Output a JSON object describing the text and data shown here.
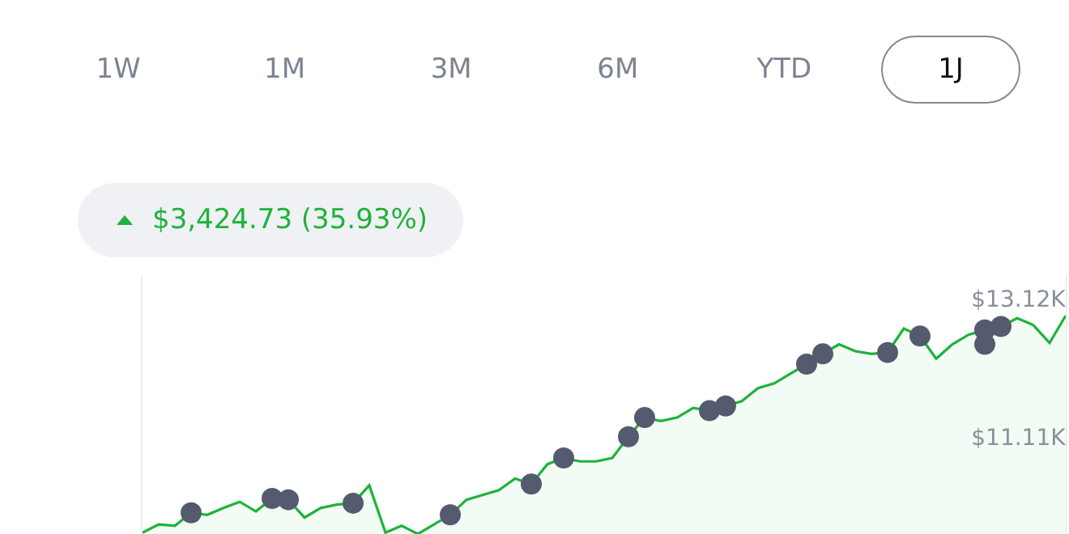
{
  "chart_data": {
    "type": "area",
    "subtitle": "$3,424.73 (35.93%)",
    "annotations": [
      "1W",
      "1M",
      "3M",
      "6M",
      "YTD",
      "1J"
    ],
    "categories": [
      null,
      null,
      null,
      null,
      null,
      null,
      null,
      null,
      null,
      null,
      null,
      null,
      null,
      null,
      null,
      null,
      null,
      null,
      null,
      null,
      null,
      null,
      null,
      null,
      null,
      null,
      null,
      null,
      null,
      null,
      null,
      null,
      null,
      null,
      null,
      null,
      null,
      null,
      null,
      null,
      null,
      null,
      null,
      null,
      null,
      null,
      null,
      null,
      null,
      null,
      null,
      null,
      null,
      null,
      null,
      null,
      null,
      null
    ],
    "series": [
      {
        "type": "area",
        "color": "#1db33a",
        "values": [
          9.71,
          9.83,
          9.81,
          10.0,
          9.97,
          10.07,
          10.16,
          10.02,
          10.21,
          10.19,
          9.93,
          10.07,
          10.12,
          10.14,
          10.4,
          9.71,
          9.81,
          9.69,
          9.83,
          9.97,
          10.19,
          10.26,
          10.33,
          10.5,
          10.42,
          10.71,
          10.8,
          10.75,
          10.75,
          10.8,
          11.11,
          11.39,
          11.34,
          11.39,
          11.53,
          11.49,
          11.56,
          11.63,
          11.82,
          11.89,
          12.03,
          12.17,
          12.32,
          12.46,
          12.36,
          12.32,
          12.34,
          12.69,
          12.58,
          12.25,
          12.46,
          12.6,
          12.67,
          12.72,
          12.84,
          12.74,
          12.48,
          12.88
        ]
      },
      {
        "type": "scatter",
        "color": "#555b6e",
        "values": [
          null,
          null,
          null,
          10.0,
          null,
          null,
          null,
          null,
          10.21,
          10.19,
          null,
          null,
          null,
          10.14,
          null,
          null,
          null,
          null,
          null,
          9.97,
          null,
          null,
          null,
          null,
          10.42,
          null,
          10.8,
          null,
          null,
          null,
          11.11,
          11.39,
          null,
          null,
          null,
          11.49,
          11.56,
          null,
          null,
          null,
          null,
          12.17,
          12.32,
          null,
          null,
          null,
          12.34,
          null,
          12.58,
          null,
          null,
          null,
          12.67,
          12.72,
          null,
          null,
          null,
          null
        ]
      },
      {
        "type": "scatter",
        "color": "#555b6e",
        "values": [
          null,
          null,
          null,
          null,
          null,
          null,
          null,
          null,
          null,
          null,
          null,
          null,
          null,
          null,
          null,
          null,
          null,
          null,
          null,
          null,
          null,
          null,
          null,
          null,
          null,
          null,
          null,
          null,
          null,
          null,
          null,
          null,
          null,
          null,
          null,
          null,
          null,
          null,
          null,
          null,
          null,
          null,
          null,
          null,
          null,
          null,
          null,
          null,
          null,
          null,
          null,
          null,
          12.46,
          null,
          null,
          null,
          null,
          null
        ]
      }
    ],
    "ylim": [
      9.69,
      13.47
    ],
    "yticks": [
      {
        "value": 13.12,
        "label": "$13.12K"
      },
      {
        "value": 11.11,
        "label": "$11.11K"
      }
    ],
    "tick_labels": "y",
    "grid": false,
    "legend": false
  }
}
